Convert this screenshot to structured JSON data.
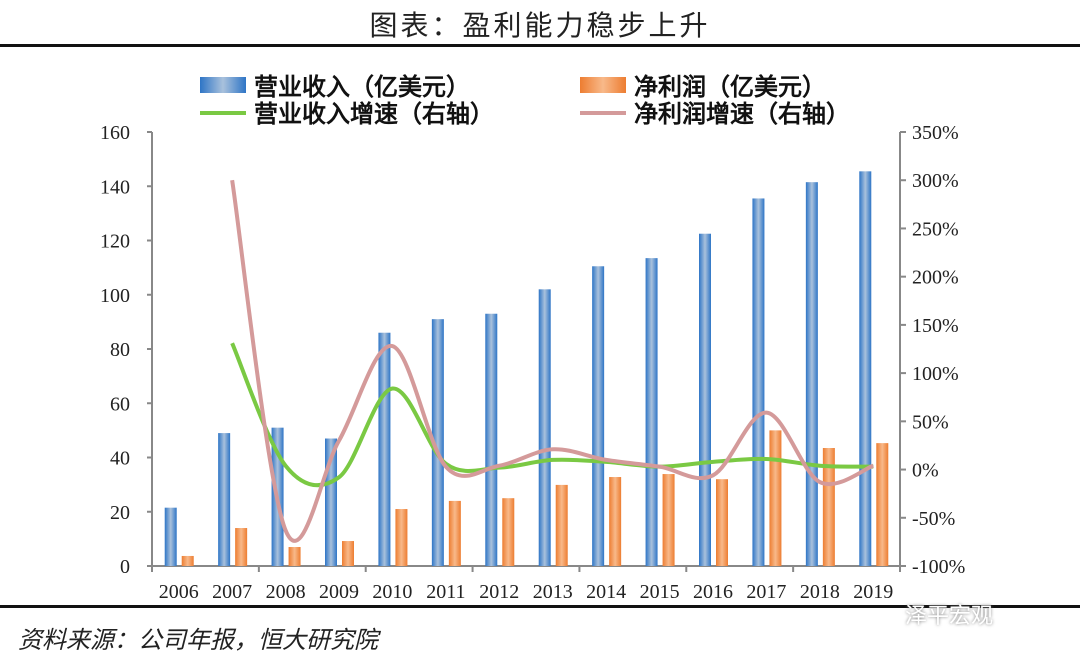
{
  "title": "图表：盈利能力稳步上升",
  "source": "资料来源：公司年报，恒大研究院",
  "watermark": "泽平宏观",
  "chart_data": {
    "type": "bar+line",
    "categories": [
      "2006",
      "2007",
      "2008",
      "2009",
      "2010",
      "2011",
      "2012",
      "2013",
      "2014",
      "2015",
      "2016",
      "2017",
      "2018",
      "2019"
    ],
    "series": [
      {
        "name": "营业收入（亿美元）",
        "type": "bar",
        "axis": "left",
        "color": "#2e75c6",
        "values": [
          21.5,
          49,
          51,
          47,
          86,
          91,
          93,
          102,
          110.5,
          113.5,
          122.5,
          135.5,
          141.5,
          145.5
        ]
      },
      {
        "name": "净利润（亿美元）",
        "type": "bar",
        "axis": "left",
        "color": "#ed7d31",
        "values": [
          3.7,
          14,
          7,
          9.2,
          21,
          24,
          25,
          29.9,
          32.8,
          33.9,
          32,
          50,
          43.5,
          45.3
        ]
      },
      {
        "name": "营业收入增速（右轴）",
        "type": "line",
        "axis": "right",
        "color": "#7ac943",
        "values": [
          null,
          131,
          4,
          -8,
          84,
          6,
          2,
          10,
          8,
          3,
          8,
          11,
          4,
          3
        ]
      },
      {
        "name": "净利润增速（右轴）",
        "type": "line",
        "axis": "right",
        "color": "#d49a9a",
        "values": [
          null,
          300,
          -63,
          30,
          128,
          3,
          4,
          21,
          10,
          3,
          -6,
          59,
          -13,
          4
        ]
      }
    ],
    "left_axis": {
      "min": 0,
      "max": 160,
      "ticks": [
        "0",
        "20",
        "40",
        "60",
        "80",
        "100",
        "120",
        "140",
        "160"
      ]
    },
    "right_axis": {
      "min": -100,
      "max": 350,
      "ticks": [
        "-100%",
        "-50%",
        "0%",
        "50%",
        "100%",
        "150%",
        "200%",
        "250%",
        "300%",
        "350%"
      ]
    },
    "grid": false,
    "legend": "top"
  }
}
